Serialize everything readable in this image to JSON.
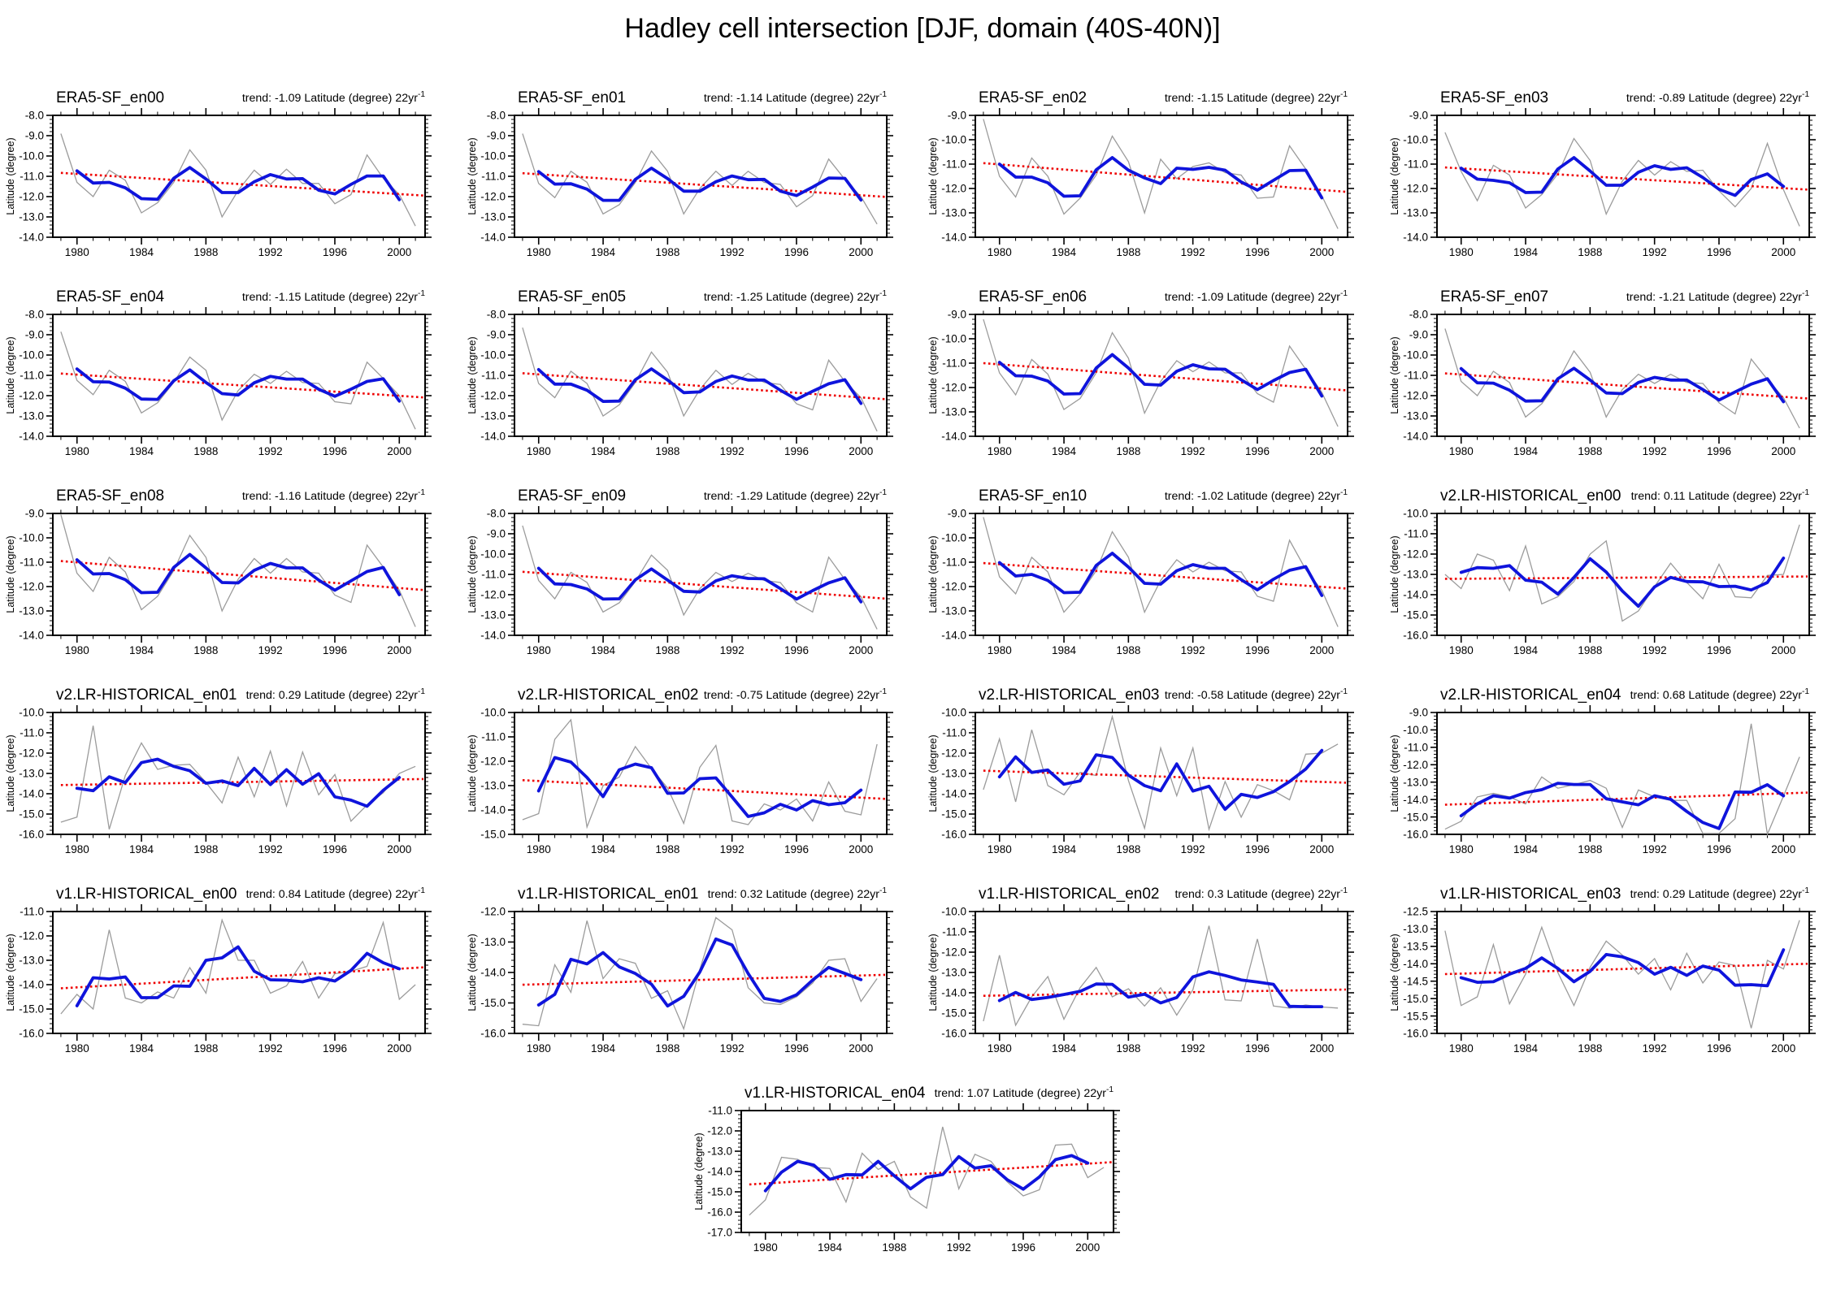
{
  "page_title": "Hadley cell intersection [DJF, domain (40S-40N)]",
  "ylabel": "Latitude (degree)",
  "trend_prefix": "trend: ",
  "trend_unit": "Latitude (degree) 22yr",
  "trend_unit_sup": "-1",
  "colors": {
    "annual": "#9b9b9b",
    "smoothed": "#0f14dc",
    "trend": "#ee0000",
    "axis": "#000000"
  },
  "years": [
    1979,
    1980,
    1981,
    1982,
    1983,
    1984,
    1985,
    1986,
    1987,
    1988,
    1989,
    1990,
    1991,
    1992,
    1993,
    1994,
    1995,
    1996,
    1997,
    1998,
    1999,
    2000,
    2001
  ],
  "xticks_major": [
    1980,
    1984,
    1988,
    1992,
    1996,
    2000
  ],
  "chart_data": [
    {
      "type": "line",
      "title": "ERA5-SF_en00",
      "trend": "-1.09",
      "ylim": [
        -14.0,
        -8.0
      ],
      "ytick": 1.0,
      "annual": [
        -8.9,
        -11.3,
        -12.0,
        -10.7,
        -11.2,
        -12.8,
        -12.3,
        -11.3,
        -9.7,
        -10.7,
        -13.0,
        -11.7,
        -10.7,
        -11.4,
        -10.65,
        -11.35,
        -11.35,
        -12.35,
        -11.9,
        -9.95,
        -11.1,
        -11.9,
        -13.45
      ]
    },
    {
      "type": "line",
      "title": "ERA5-SF_en01",
      "trend": "-1.14",
      "ylim": [
        -14.0,
        -8.0
      ],
      "ytick": 1.0,
      "annual": [
        -8.9,
        -11.35,
        -12.05,
        -10.75,
        -11.3,
        -12.85,
        -12.4,
        -11.3,
        -9.75,
        -10.75,
        -12.85,
        -11.6,
        -10.75,
        -11.45,
        -10.75,
        -11.3,
        -11.4,
        -12.5,
        -11.95,
        -10.15,
        -11.15,
        -12.0,
        -13.35
      ]
    },
    {
      "type": "line",
      "title": "ERA5-SF_en02",
      "trend": "-1.15",
      "ylim": [
        -14.0,
        -9.0
      ],
      "ytick": 1.0,
      "annual": [
        -9.15,
        -11.5,
        -12.35,
        -10.75,
        -11.5,
        -13.05,
        -12.4,
        -11.45,
        -9.85,
        -10.9,
        -13.0,
        -10.8,
        -11.6,
        -11.1,
        -10.95,
        -11.35,
        -11.45,
        -12.4,
        -12.35,
        -10.25,
        -11.2,
        -12.3,
        -13.65
      ]
    },
    {
      "type": "line",
      "title": "ERA5-SF_en03",
      "trend": "-0.89",
      "ylim": [
        -14.0,
        -9.0
      ],
      "ytick": 1.0,
      "annual": [
        -9.7,
        -11.3,
        -12.5,
        -11.05,
        -11.45,
        -12.8,
        -12.25,
        -11.4,
        -9.95,
        -10.85,
        -13.05,
        -11.7,
        -10.85,
        -11.45,
        -10.9,
        -11.3,
        -11.25,
        -12.1,
        -12.75,
        -12.0,
        -10.15,
        -12.05,
        -13.55
      ]
    },
    {
      "type": "line",
      "title": "ERA5-SF_en04",
      "trend": "-1.15",
      "ylim": [
        -14.0,
        -8.0
      ],
      "ytick": 1.0,
      "annual": [
        -8.85,
        -11.25,
        -11.95,
        -10.75,
        -11.3,
        -12.85,
        -12.35,
        -11.35,
        -10.1,
        -10.75,
        -13.2,
        -11.75,
        -10.95,
        -11.4,
        -10.8,
        -11.35,
        -11.4,
        -12.3,
        -12.4,
        -10.35,
        -11.15,
        -12.0,
        -13.65
      ]
    },
    {
      "type": "line",
      "title": "ERA5-SF_en05",
      "trend": "-1.25",
      "ylim": [
        -14.0,
        -8.0
      ],
      "ytick": 1.0,
      "annual": [
        -8.65,
        -11.4,
        -12.1,
        -10.8,
        -11.4,
        -13.0,
        -12.45,
        -11.35,
        -9.85,
        -10.85,
        -13.0,
        -11.7,
        -10.75,
        -11.45,
        -10.9,
        -11.35,
        -11.45,
        -12.4,
        -12.7,
        -10.25,
        -11.3,
        -12.1,
        -13.75
      ]
    },
    {
      "type": "line",
      "title": "ERA5-SF_en06",
      "trend": "-1.09",
      "ylim": [
        -14.0,
        -9.0
      ],
      "ytick": 1.0,
      "annual": [
        -9.2,
        -11.4,
        -12.3,
        -10.85,
        -11.45,
        -12.9,
        -12.45,
        -11.4,
        -9.75,
        -10.8,
        -13.05,
        -11.75,
        -10.9,
        -11.35,
        -10.95,
        -11.4,
        -11.4,
        -12.25,
        -12.6,
        -10.3,
        -11.25,
        -12.2,
        -13.6
      ]
    },
    {
      "type": "line",
      "title": "ERA5-SF_en07",
      "trend": "-1.21",
      "ylim": [
        -14.0,
        -8.0
      ],
      "ytick": 1.0,
      "annual": [
        -8.7,
        -11.3,
        -12.0,
        -10.8,
        -11.35,
        -13.05,
        -12.4,
        -11.3,
        -9.8,
        -10.85,
        -13.05,
        -11.7,
        -10.95,
        -11.4,
        -10.95,
        -11.35,
        -11.4,
        -12.35,
        -12.9,
        -10.2,
        -11.2,
        -12.1,
        -13.6
      ]
    },
    {
      "type": "line",
      "title": "ERA5-SF_en08",
      "trend": "-1.16",
      "ylim": [
        -14.0,
        -9.0
      ],
      "ytick": 1.0,
      "annual": [
        -9.05,
        -11.45,
        -12.2,
        -10.8,
        -11.4,
        -12.95,
        -12.4,
        -11.35,
        -9.9,
        -10.8,
        -13.0,
        -11.7,
        -10.85,
        -11.45,
        -10.85,
        -11.4,
        -11.45,
        -12.35,
        -12.65,
        -10.3,
        -11.2,
        -12.15,
        -13.65
      ]
    },
    {
      "type": "line",
      "title": "ERA5-SF_en09",
      "trend": "-1.29",
      "ylim": [
        -14.0,
        -8.0
      ],
      "ytick": 1.0,
      "annual": [
        -8.6,
        -11.3,
        -12.2,
        -10.9,
        -11.4,
        -12.85,
        -12.4,
        -11.35,
        -10.05,
        -10.8,
        -13.0,
        -11.7,
        -10.9,
        -11.35,
        -10.95,
        -11.3,
        -11.4,
        -12.4,
        -12.85,
        -10.15,
        -11.25,
        -12.1,
        -13.7
      ]
    },
    {
      "type": "line",
      "title": "ERA5-SF_en10",
      "trend": "-1.02",
      "ylim": [
        -14.0,
        -9.0
      ],
      "ytick": 1.0,
      "annual": [
        -9.15,
        -11.6,
        -12.3,
        -10.8,
        -11.4,
        -13.05,
        -12.3,
        -11.35,
        -9.75,
        -10.8,
        -13.05,
        -11.75,
        -10.9,
        -11.4,
        -11.0,
        -11.35,
        -11.4,
        -12.4,
        -12.6,
        -10.1,
        -11.3,
        -12.15,
        -13.65
      ]
    },
    {
      "type": "line",
      "title": "v2.LR-HISTORICAL_en00",
      "trend": "0.11",
      "ylim": [
        -16.0,
        -10.0
      ],
      "ytick": 1.0,
      "annual": [
        -13.0,
        -13.7,
        -12.0,
        -12.3,
        -13.8,
        -11.6,
        -14.45,
        -14.1,
        -13.35,
        -12.0,
        -11.35,
        -15.3,
        -14.8,
        -13.6,
        -12.45,
        -13.4,
        -14.2,
        -12.5,
        -14.1,
        -14.15,
        -13.05,
        -13.0,
        -10.55
      ]
    },
    {
      "type": "line",
      "title": "v2.LR-HISTORICAL_en01",
      "trend": "0.29",
      "ylim": [
        -16.0,
        -10.0
      ],
      "ytick": 1.0,
      "annual": [
        -15.4,
        -15.15,
        -10.65,
        -15.75,
        -13.1,
        -11.5,
        -12.8,
        -12.6,
        -12.55,
        -13.45,
        -14.45,
        -12.2,
        -14.15,
        -11.9,
        -14.6,
        -11.95,
        -14.05,
        -13.05,
        -15.35,
        -14.55,
        -13.95,
        -13.0,
        -12.65
      ]
    },
    {
      "type": "line",
      "title": "v2.LR-HISTORICAL_en02",
      "trend": "-0.75",
      "ylim": [
        -15.0,
        -10.0
      ],
      "ytick": 1.0,
      "annual": [
        -14.4,
        -14.15,
        -11.1,
        -10.3,
        -14.7,
        -13.0,
        -12.65,
        -11.4,
        -12.3,
        -13.1,
        -14.55,
        -12.25,
        -11.35,
        -14.45,
        -14.6,
        -13.75,
        -14.0,
        -13.55,
        -14.45,
        -12.85,
        -14.05,
        -14.2,
        -11.3
      ]
    },
    {
      "type": "line",
      "title": "v2.LR-HISTORICAL_en03",
      "trend": "-0.58",
      "ylim": [
        -16.0,
        -10.0
      ],
      "ytick": 1.0,
      "annual": [
        -13.8,
        -11.3,
        -14.4,
        -10.85,
        -13.6,
        -14.05,
        -12.95,
        -13.1,
        -10.2,
        -13.35,
        -15.7,
        -11.75,
        -14.1,
        -11.75,
        -15.75,
        -13.4,
        -15.15,
        -13.55,
        -13.85,
        -14.3,
        -12.05,
        -12.0,
        -11.55
      ]
    },
    {
      "type": "line",
      "title": "v2.LR-HISTORICAL_en04",
      "trend": "0.68",
      "ylim": [
        -16.0,
        -9.0
      ],
      "ytick": 1.0,
      "annual": [
        -15.7,
        -15.25,
        -13.85,
        -13.65,
        -13.85,
        -14.25,
        -12.7,
        -13.35,
        -13.15,
        -12.9,
        -13.35,
        -15.6,
        -13.45,
        -13.85,
        -14.05,
        -14.05,
        -15.95,
        -15.95,
        -15.1,
        -9.65,
        -16.0,
        -13.8,
        -11.55
      ]
    },
    {
      "type": "line",
      "title": "v1.LR-HISTORICAL_en00",
      "trend": "0.84",
      "ylim": [
        -16.0,
        -11.0
      ],
      "ytick": 1.0,
      "annual": [
        -15.2,
        -14.4,
        -15.0,
        -11.75,
        -14.55,
        -14.75,
        -14.3,
        -14.55,
        -13.3,
        -14.35,
        -11.35,
        -13.0,
        -13.0,
        -14.35,
        -14.05,
        -13.05,
        -14.55,
        -13.55,
        -13.45,
        -13.25,
        -11.45,
        -14.6,
        -14.0
      ]
    },
    {
      "type": "line",
      "title": "v1.LR-HISTORICAL_en01",
      "trend": "0.32",
      "ylim": [
        -16.0,
        -12.0
      ],
      "ytick": 1.0,
      "annual": [
        -15.7,
        -15.75,
        -13.75,
        -14.65,
        -12.3,
        -14.2,
        -13.55,
        -13.7,
        -14.85,
        -14.6,
        -15.85,
        -13.9,
        -12.2,
        -12.6,
        -14.5,
        -15.0,
        -15.05,
        -14.8,
        -14.35,
        -13.6,
        -13.55,
        -14.95,
        -14.2
      ]
    },
    {
      "type": "line",
      "title": "v1.LR-HISTORICAL_en02",
      "trend": "0.3",
      "ylim": [
        -16.0,
        -10.0
      ],
      "ytick": 1.0,
      "annual": [
        -15.4,
        -12.15,
        -15.6,
        -14.2,
        -13.2,
        -15.3,
        -13.75,
        -12.75,
        -14.2,
        -13.8,
        -14.65,
        -13.75,
        -15.1,
        -13.85,
        -10.7,
        -14.35,
        -14.4,
        -11.35,
        -14.65,
        -14.75,
        -14.6,
        -14.7,
        -14.75
      ]
    },
    {
      "type": "line",
      "title": "v1.LR-HISTORICAL_en03",
      "trend": "0.29",
      "ylim": [
        -16.0,
        -12.5
      ],
      "ytick": 0.5,
      "annual": [
        -13.05,
        -15.2,
        -14.95,
        -13.45,
        -15.15,
        -14.3,
        -12.95,
        -14.25,
        -15.2,
        -14.1,
        -13.35,
        -13.75,
        -14.3,
        -13.85,
        -14.75,
        -13.7,
        -14.55,
        -13.95,
        -14.05,
        -15.85,
        -13.9,
        -14.15,
        -12.75
      ]
    },
    {
      "type": "line",
      "title": "v1.LR-HISTORICAL_en04",
      "trend": "1.07",
      "ylim": [
        -17.0,
        -11.0
      ],
      "ytick": 1.0,
      "annual": [
        -16.15,
        -15.4,
        -13.3,
        -13.4,
        -13.8,
        -13.85,
        -15.5,
        -13.1,
        -13.9,
        -13.5,
        -15.25,
        -15.8,
        -11.8,
        -14.85,
        -13.15,
        -13.5,
        -14.5,
        -15.2,
        -14.9,
        -12.7,
        -12.65,
        -14.3,
        -13.8
      ]
    }
  ]
}
